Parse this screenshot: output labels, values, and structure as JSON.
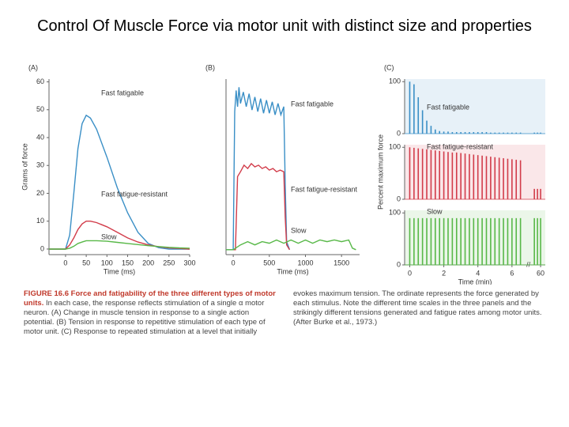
{
  "slide_title": "Control Of Muscle Force via motor unit with distinct size and properties",
  "caption": {
    "label": "FIGURE 16.6",
    "heading": "Force and fatigability of the three different types of motor units.",
    "text": "In each case, the response reflects stimulation of a single α motor neuron. (A) Change in muscle tension in response to a single action potential. (B) Tension in response to repetitive stimulation of each type of motor unit. (C) Response to repeated stimulation at a level that initially evokes maximum tension. The ordinate represents the force generated by each stimulus. Note the different time scales in the three panels and the strikingly different tensions generated and fatigue rates among motor units. (After Burke et al., 1973.)"
  },
  "chart_data": [
    {
      "type": "line",
      "panel": "(A)",
      "x_label": "Time (ms)",
      "y_label": "Grams of force",
      "x": [
        -40,
        -20,
        0,
        10,
        20,
        30,
        40,
        50,
        60,
        75,
        100,
        125,
        150,
        175,
        200,
        225,
        250,
        275,
        300
      ],
      "xlim": [
        -40,
        300
      ],
      "xticks": [
        0,
        50,
        100,
        150,
        200,
        250,
        300
      ],
      "ylim": [
        -2,
        61
      ],
      "yticks": [
        0,
        10,
        20,
        30,
        40,
        50,
        60
      ],
      "series": [
        {
          "name": "Fast fatigable",
          "color": "#3a8fc6",
          "values": [
            0,
            0,
            0,
            5,
            20,
            36,
            45,
            48,
            47,
            43,
            33,
            22,
            13,
            6,
            2,
            0.5,
            0,
            0,
            0
          ]
        },
        {
          "name": "Fast fatigue-resistant",
          "color": "#d23c4a",
          "values": [
            0,
            0,
            0,
            1.5,
            4,
            7,
            9,
            10,
            10,
            9.5,
            8,
            6,
            4,
            2.5,
            1.5,
            0.8,
            0.4,
            0.2,
            0
          ]
        },
        {
          "name": "Slow",
          "color": "#58b848",
          "values": [
            0,
            0,
            0,
            0.3,
            1,
            2,
            2.5,
            3,
            3,
            3,
            2.8,
            2.4,
            2,
            1.6,
            1.2,
            0.9,
            0.6,
            0.4,
            0.3
          ]
        }
      ]
    },
    {
      "type": "line",
      "panel": "(B)",
      "x_label": "Time (ms)",
      "xlim": [
        -100,
        1750
      ],
      "xticks": [
        0,
        500,
        1000,
        1500
      ],
      "ylim": [
        -3,
        105
      ],
      "series": [
        {
          "name": "Fast fatigable",
          "color": "#3a8fc6",
          "x": [
            -100,
            -10,
            0,
            20,
            40,
            60,
            80,
            100,
            140,
            180,
            220,
            260,
            300,
            340,
            380,
            420,
            460,
            500,
            540,
            580,
            620,
            660,
            700,
            720,
            740,
            780
          ],
          "values": [
            0,
            0,
            0,
            85,
            98,
            88,
            100,
            90,
            97,
            88,
            96,
            86,
            94,
            85,
            93,
            84,
            92,
            84,
            91,
            83,
            90,
            83,
            88,
            40,
            5,
            0
          ]
        },
        {
          "name": "Fast fatigue-resistant",
          "color": "#d23c4a",
          "x": [
            0,
            30,
            60,
            100,
            150,
            200,
            250,
            300,
            350,
            400,
            450,
            500,
            550,
            600,
            650,
            700,
            720,
            740,
            780
          ],
          "values": [
            0,
            0,
            45,
            48,
            52,
            50,
            53,
            51,
            52,
            50,
            51,
            49,
            50,
            48,
            49,
            48,
            20,
            3,
            0
          ]
        },
        {
          "name": "Slow",
          "color": "#58b848",
          "x": [
            -100,
            0,
            100,
            200,
            300,
            400,
            500,
            600,
            700,
            800,
            900,
            1000,
            1100,
            1200,
            1300,
            1400,
            1500,
            1600,
            1650,
            1700
          ],
          "values": [
            0,
            0,
            3,
            5,
            3,
            5,
            4,
            6,
            4,
            6,
            4,
            6,
            4,
            6,
            5,
            6,
            5,
            6,
            1,
            0
          ]
        }
      ]
    },
    {
      "type": "spike",
      "panel": "(C)",
      "x_label": "Time (min)",
      "y_label": "Percent maximum force",
      "x": [
        0,
        0.25,
        0.5,
        0.75,
        1,
        1.25,
        1.5,
        1.75,
        2,
        2.25,
        2.5,
        2.75,
        3,
        3.25,
        3.5,
        3.75,
        4,
        4.25,
        4.5,
        4.75,
        5,
        5.25,
        5.5,
        5.75,
        6,
        6.25,
        6.5,
        59.6,
        59.8,
        60
      ],
      "xlim": [
        -0.3,
        60.3
      ],
      "xbreak": [
        6.8,
        59.4
      ],
      "xticks": [
        0,
        2,
        4,
        6,
        60
      ],
      "ylim": [
        0,
        105
      ],
      "yticks": [
        0,
        100
      ],
      "series": [
        {
          "name": "Fast fatigable",
          "color": "#3a8fc6",
          "values": [
            100,
            95,
            70,
            45,
            25,
            15,
            8,
            5,
            4,
            4,
            3,
            3,
            3,
            3,
            3,
            3,
            3,
            3,
            3,
            2,
            2,
            2,
            2,
            2,
            2,
            2,
            2,
            2,
            2,
            2
          ]
        },
        {
          "name": "Fast fatigue-resistant",
          "color": "#d23c4a",
          "values": [
            100,
            99,
            98,
            97,
            96,
            95,
            94,
            93,
            92,
            91,
            90,
            90,
            89,
            88,
            87,
            86,
            85,
            84,
            83,
            82,
            81,
            80,
            79,
            78,
            77,
            76,
            75,
            20,
            20,
            20
          ]
        },
        {
          "name": "Slow",
          "color": "#58b848",
          "values": [
            90,
            90,
            90,
            90,
            90,
            90,
            90,
            90,
            90,
            90,
            90,
            90,
            90,
            90,
            90,
            90,
            90,
            90,
            90,
            90,
            90,
            90,
            90,
            90,
            90,
            90,
            90,
            90,
            90,
            90
          ]
        }
      ]
    }
  ]
}
